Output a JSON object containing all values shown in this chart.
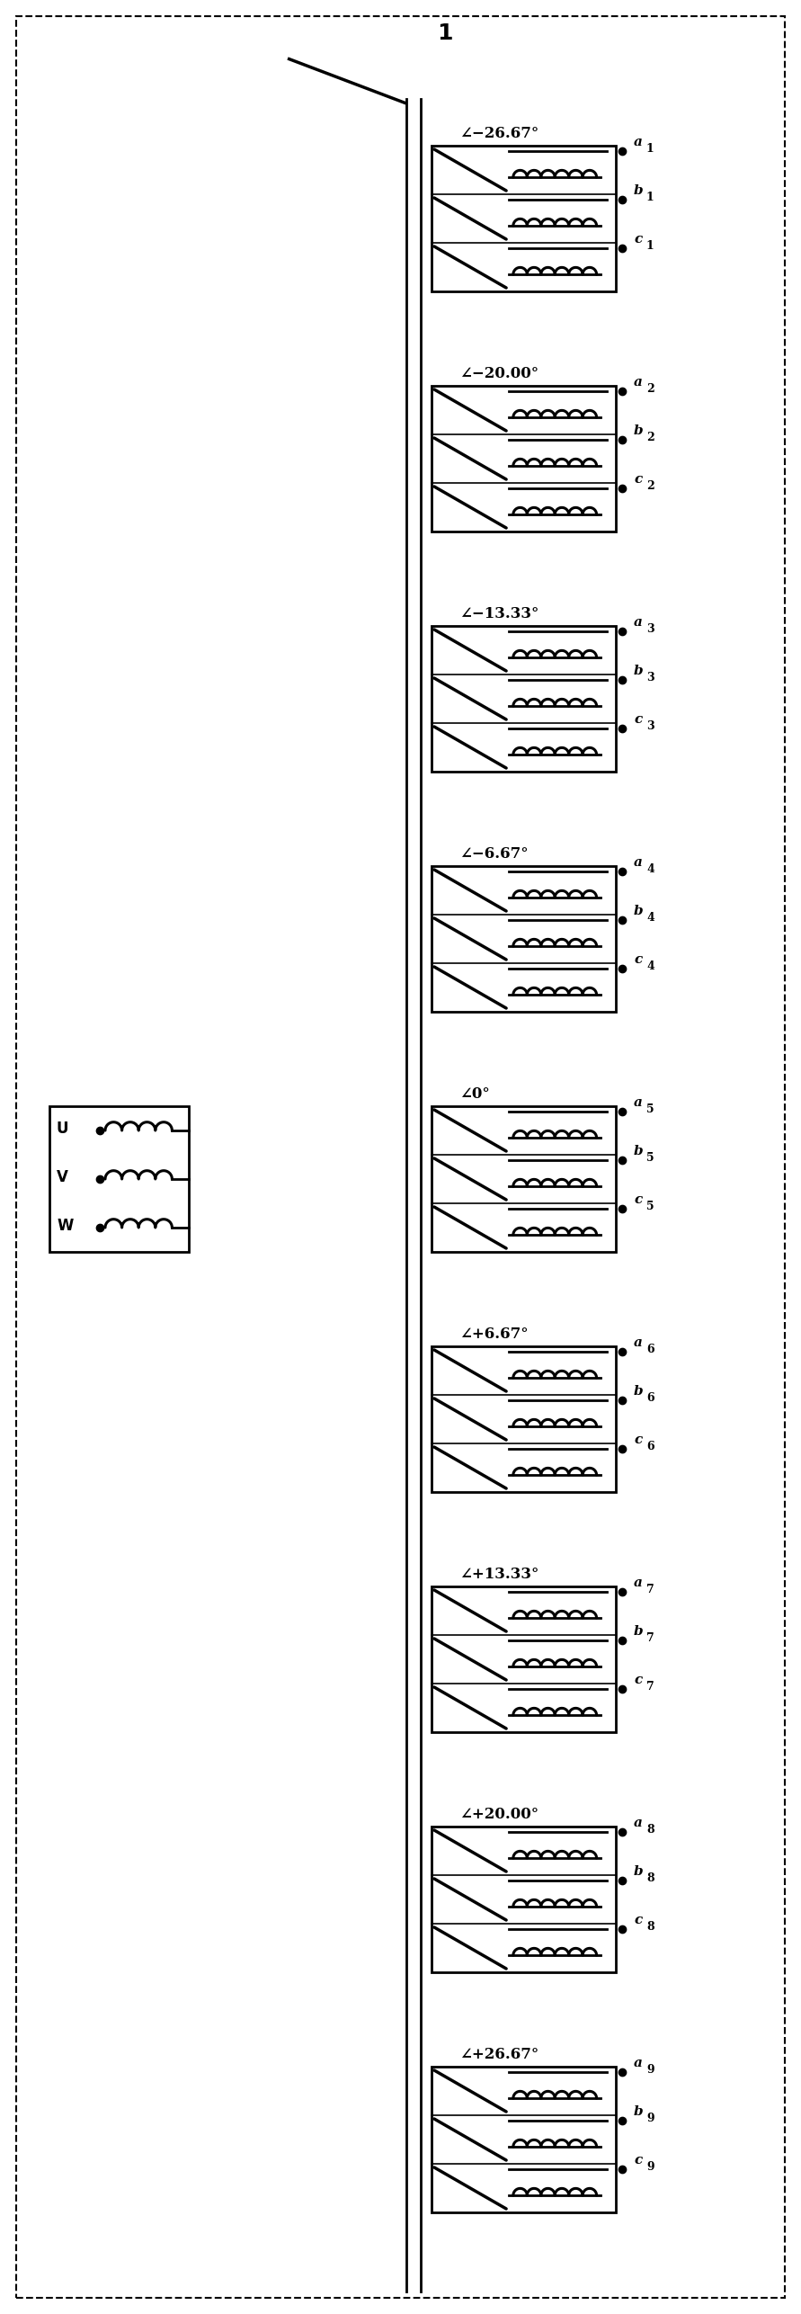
{
  "title_label": "1",
  "angles": [
    "−26.67°",
    "−20.00°",
    "−13.33°",
    "−6.67°",
    "−0°",
    "−+6.67°",
    "−+13.33°",
    "−+20.00°",
    "−+26.67°"
  ],
  "angle_texts": [
    "∠−26.67°",
    "∠−20.00°",
    "∠−13.33°",
    "∠−6.67°",
    "∠0°",
    "∠+6.67°",
    "∠+13.33°",
    "∠+20.00°",
    "∠+26.67°"
  ],
  "subscripts": [
    "1",
    "2",
    "3",
    "4",
    "5",
    "6",
    "7",
    "8",
    "9"
  ],
  "phases": [
    "a",
    "b",
    "c"
  ],
  "primary_phases": [
    "U",
    "V",
    "W"
  ],
  "n_transformers": 9,
  "fig_width": 8.91,
  "fig_height": 25.73,
  "bg_color": "white",
  "line_color": "black"
}
